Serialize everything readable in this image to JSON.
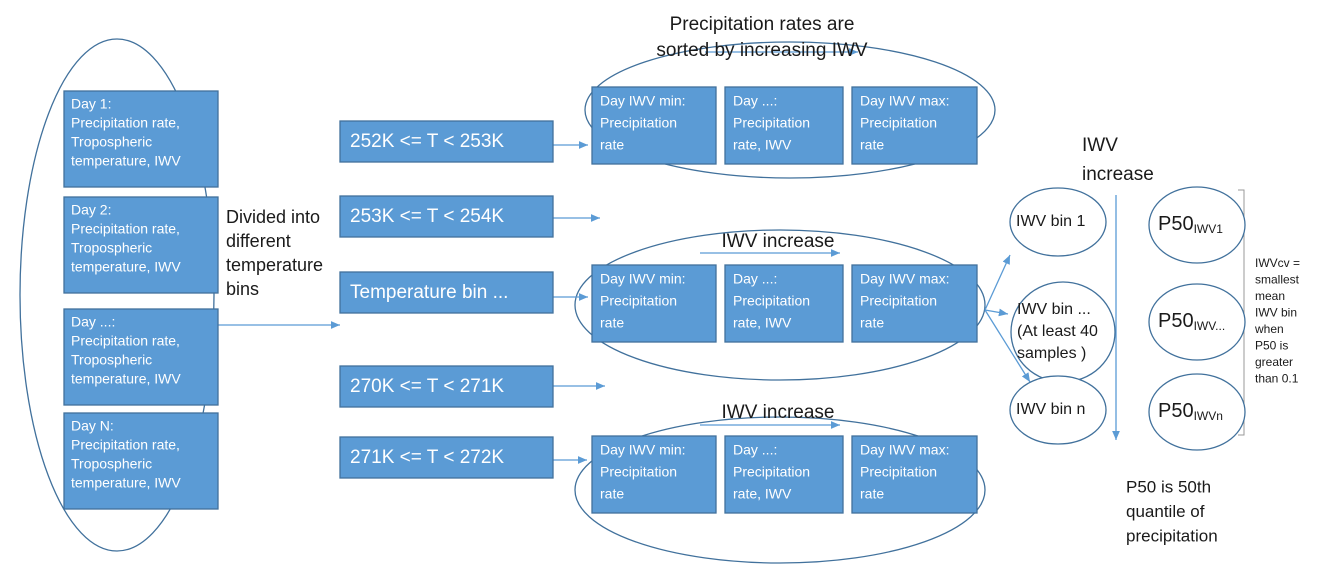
{
  "day_boxes": [
    {
      "lines": [
        "Day 1:",
        "Precipitation rate,",
        "Tropospheric",
        "temperature, IWV"
      ]
    },
    {
      "lines": [
        "Day 2:",
        "Precipitation rate,",
        "Tropospheric",
        "temperature, IWV"
      ]
    },
    {
      "lines": [
        "Day ...:",
        "Precipitation rate,",
        "Tropospheric",
        "temperature, IWV"
      ]
    },
    {
      "lines": [
        "Day N:",
        "Precipitation rate,",
        "Tropospheric",
        "temperature, IWV"
      ]
    }
  ],
  "divided_label": {
    "lines": [
      "Divided into",
      "different",
      "temperature",
      "bins"
    ]
  },
  "temperature_bins": [
    "252K <= T < 253K",
    "253K <= T < 254K",
    "Temperature bin ...",
    "270K <= T < 271K",
    "271K <= T < 272K"
  ],
  "sorted_note": {
    "lines": [
      "Precipitation rates are",
      "sorted by increasing IWV"
    ]
  },
  "groups": [
    {
      "boxes": [
        {
          "lines": [
            "Day IWV min:",
            "Precipitation",
            "rate"
          ]
        },
        {
          "lines": [
            "Day ...:",
            "Precipitation",
            "rate, IWV"
          ]
        },
        {
          "lines": [
            "Day IWV max:",
            "Precipitation",
            "rate"
          ]
        }
      ]
    },
    {
      "label": "IWV increase",
      "boxes": [
        {
          "lines": [
            "Day IWV min:",
            "Precipitation",
            "rate"
          ]
        },
        {
          "lines": [
            "Day ...:",
            "Precipitation",
            "rate, IWV"
          ]
        },
        {
          "lines": [
            "Day IWV max:",
            "Precipitation",
            "rate"
          ]
        }
      ]
    },
    {
      "label": "IWV increase",
      "boxes": [
        {
          "lines": [
            "Day IWV min:",
            "Precipitation",
            "rate"
          ]
        },
        {
          "lines": [
            "Day ...:",
            "Precipitation",
            "rate, IWV"
          ]
        },
        {
          "lines": [
            "Day IWV max:",
            "Precipitation",
            "rate"
          ]
        }
      ]
    }
  ],
  "iwv_increase": {
    "lines": [
      "IWV",
      "increase"
    ]
  },
  "iwv_bins": [
    {
      "lines": [
        "IWV bin 1"
      ]
    },
    {
      "lines": [
        "IWV bin ...",
        "(At least 40",
        "samples )"
      ]
    },
    {
      "lines": [
        "IWV bin n"
      ]
    }
  ],
  "p50": [
    {
      "text": "P50",
      "sub": "IWV1"
    },
    {
      "text": "P50",
      "sub": "IWV..."
    },
    {
      "text": "P50",
      "sub": "IWVn"
    }
  ],
  "iwvcv_note": {
    "lines": [
      "IWVcv =",
      "smallest",
      "mean",
      "IWV bin",
      "when",
      "P50 is",
      "greater",
      "than 0.1"
    ]
  },
  "p50_note": {
    "lines": [
      "P50 is 50th",
      "quantile of",
      "precipitation"
    ]
  }
}
